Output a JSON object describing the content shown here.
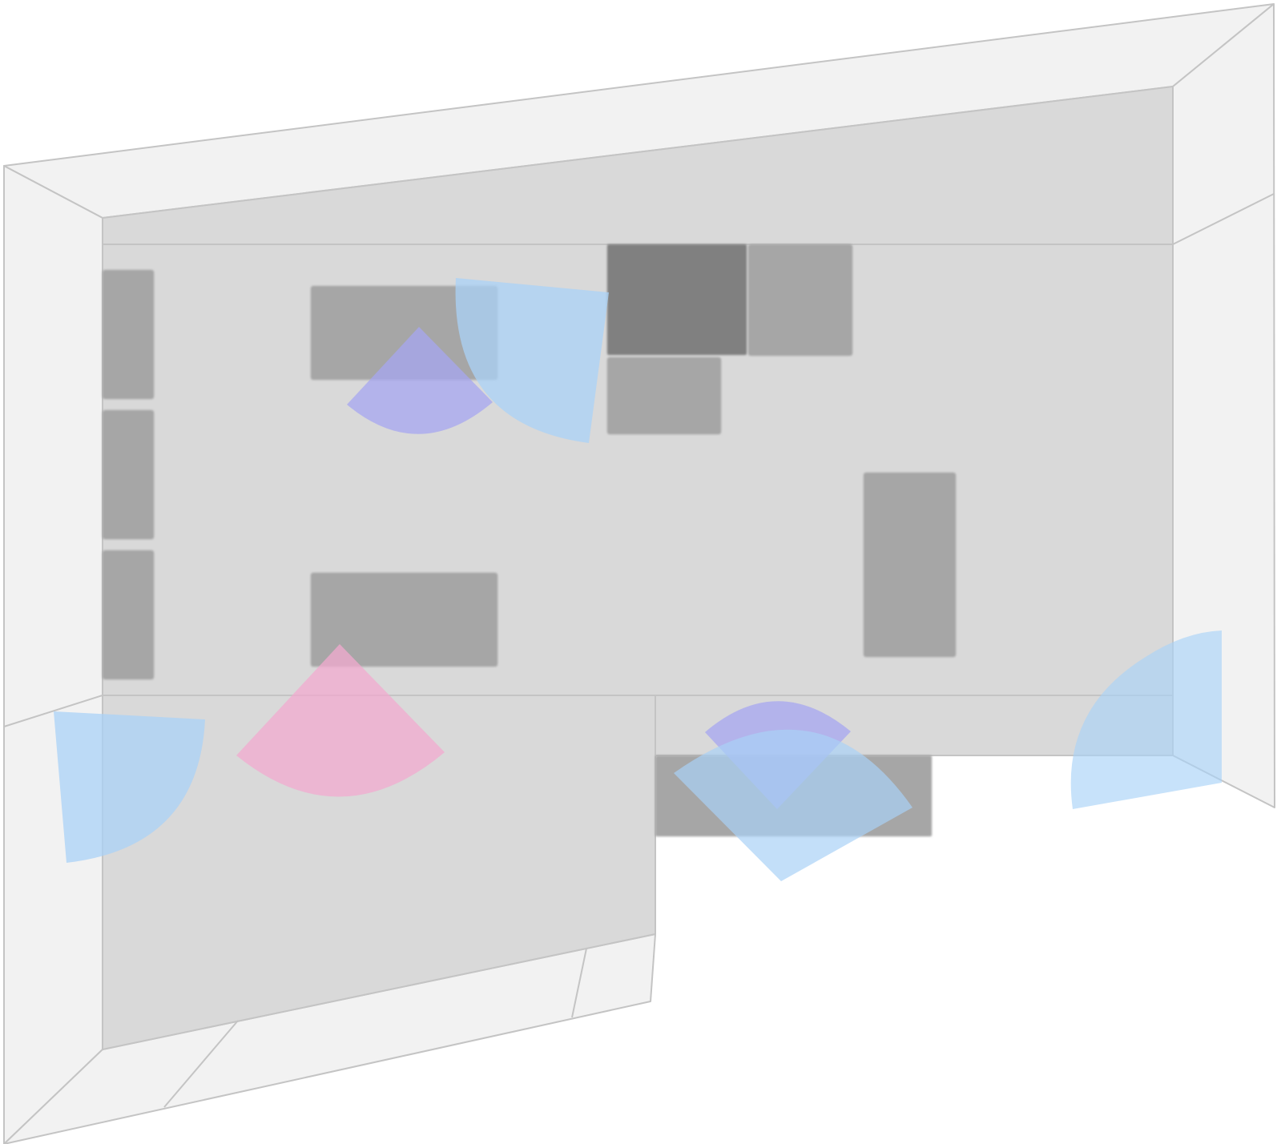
{
  "colors": {
    "wall": "#f2f2f2",
    "floor": "#d9d9d9",
    "outline": "#c4c4c4",
    "object_light": "#a6a6a6",
    "object_dark": "#808080",
    "sensor_blue": "#a9d2f7",
    "sensor_purple": "#a6a6f0",
    "sensor_pink": "#f2a9cf"
  },
  "objects": [
    {
      "name": "left-wall-cabinet-top",
      "shade": "light"
    },
    {
      "name": "left-wall-cabinet-middle",
      "shade": "light"
    },
    {
      "name": "left-wall-cabinet-bottom",
      "shade": "light"
    },
    {
      "name": "upper-table",
      "shade": "light"
    },
    {
      "name": "lower-table",
      "shade": "light"
    },
    {
      "name": "dark-equipment-block",
      "shade": "dark"
    },
    {
      "name": "right-equipment-block",
      "shade": "light"
    },
    {
      "name": "small-equipment-block",
      "shade": "light"
    },
    {
      "name": "tall-right-unit",
      "shade": "light"
    },
    {
      "name": "bottom-counter",
      "shade": "light"
    }
  ],
  "sensors": [
    {
      "name": "camera-blue-upper",
      "color": "sensor_blue",
      "shape": "quarter-sector"
    },
    {
      "name": "motion-purple-upper",
      "color": "sensor_purple",
      "shape": "narrow-sector"
    },
    {
      "name": "camera-blue-left",
      "color": "sensor_blue",
      "shape": "quarter-sector"
    },
    {
      "name": "motion-pink-lower",
      "color": "sensor_pink",
      "shape": "wide-sector"
    },
    {
      "name": "motion-purple-bottom",
      "color": "sensor_purple",
      "shape": "narrow-sector"
    },
    {
      "name": "camera-blue-bottom",
      "color": "sensor_blue",
      "shape": "wide-sector"
    },
    {
      "name": "camera-blue-right",
      "color": "sensor_blue",
      "shape": "quarter-sector"
    }
  ]
}
